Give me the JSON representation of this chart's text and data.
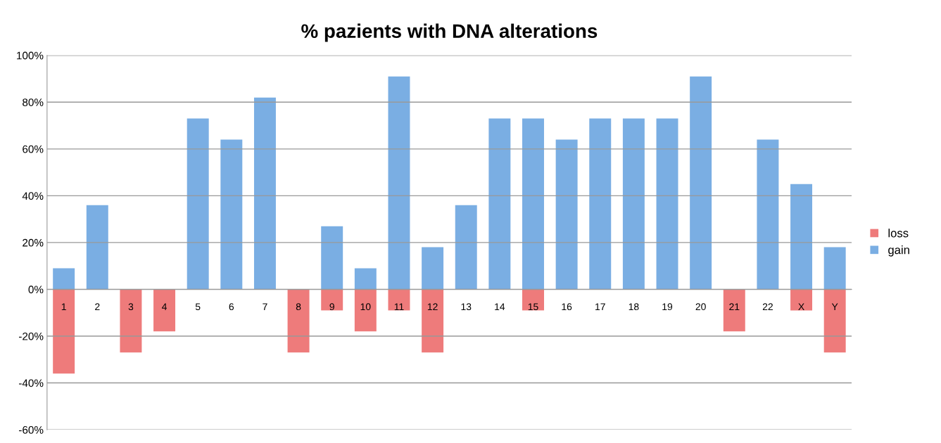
{
  "chart_data": {
    "type": "bar",
    "title": "% pazients with DNA alterations",
    "categories": [
      "1",
      "2",
      "3",
      "4",
      "5",
      "6",
      "7",
      "8",
      "9",
      "10",
      "11",
      "12",
      "13",
      "14",
      "15",
      "16",
      "17",
      "18",
      "19",
      "20",
      "21",
      "22",
      "X",
      "Y"
    ],
    "series": [
      {
        "name": "loss",
        "color": "#ee7b7b",
        "values": [
          -36,
          null,
          -27,
          -18,
          null,
          null,
          null,
          -27,
          -9,
          -18,
          -9,
          -27,
          null,
          null,
          -9,
          null,
          null,
          null,
          null,
          null,
          -18,
          null,
          -9,
          -27
        ]
      },
      {
        "name": "gain",
        "color": "#7aaee3",
        "values": [
          9,
          36,
          null,
          null,
          73,
          64,
          82,
          null,
          27,
          9,
          91,
          18,
          36,
          73,
          73,
          64,
          73,
          73,
          73,
          91,
          null,
          64,
          45,
          18
        ]
      }
    ],
    "ylim": [
      -60,
      100
    ],
    "yticks": [
      {
        "value": -60,
        "label": "-60%"
      },
      {
        "value": -40,
        "label": "-40%"
      },
      {
        "value": -20,
        "label": "-20%"
      },
      {
        "value": 0,
        "label": "0%"
      },
      {
        "value": 20,
        "label": "20%"
      },
      {
        "value": 40,
        "label": "40%"
      },
      {
        "value": 60,
        "label": "60%"
      },
      {
        "value": 80,
        "label": "80%"
      },
      {
        "value": 100,
        "label": "100%"
      }
    ],
    "grid": "y",
    "legend": "right"
  }
}
